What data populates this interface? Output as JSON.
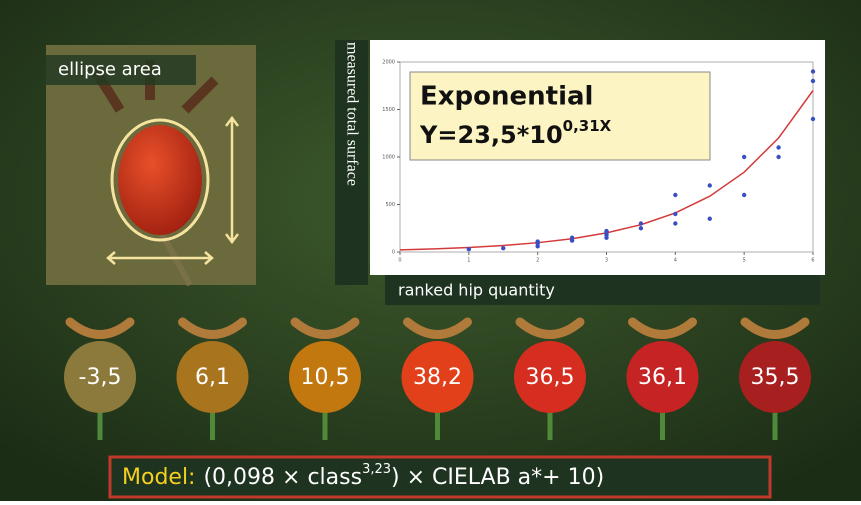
{
  "photo_label": "ellipse area",
  "y_label": "measured total surface",
  "x_label": "ranked hip quantity",
  "formula": {
    "title": "Exponential",
    "equation": "Y=23,5*10",
    "exponent": "0,31X"
  },
  "hips": [
    "-3,5",
    "6,1",
    "10,5",
    "38,2",
    "36,5",
    "36,1",
    "35,5"
  ],
  "model": {
    "label": "Model:",
    "text": "(0,098 × class",
    "sup": "3,23",
    "rest": ") × CIELAB a*+ 10)"
  },
  "chart_data": {
    "type": "scatter",
    "color": "#3a4fc4",
    "x": [
      1,
      1.5,
      2,
      2,
      2,
      2.5,
      2.5,
      3,
      3,
      3,
      3,
      3.5,
      3.5,
      4,
      4,
      4,
      4.5,
      4.5,
      5,
      5,
      5.5,
      5.5,
      6,
      6,
      6
    ],
    "values": [
      30,
      40,
      60,
      90,
      110,
      120,
      150,
      150,
      180,
      200,
      220,
      250,
      300,
      300,
      400,
      600,
      350,
      700,
      600,
      1000,
      1000,
      1100,
      1400,
      1800,
      1900
    ],
    "fit": {
      "color": "#d43a3a",
      "x": [
        0,
        0.5,
        1,
        1.5,
        2,
        2.5,
        3,
        3.5,
        4,
        4.5,
        5,
        5.5,
        6
      ],
      "values": [
        23,
        33,
        48,
        69,
        98,
        140,
        201,
        287,
        411,
        587,
        840,
        1200,
        1700
      ]
    },
    "xlim": [
      0,
      6
    ],
    "ylim": [
      0,
      2000
    ],
    "xticks": [
      0,
      1,
      2,
      3,
      4,
      5,
      6
    ],
    "yticks": [
      0,
      500,
      1000,
      1500,
      2000
    ]
  }
}
